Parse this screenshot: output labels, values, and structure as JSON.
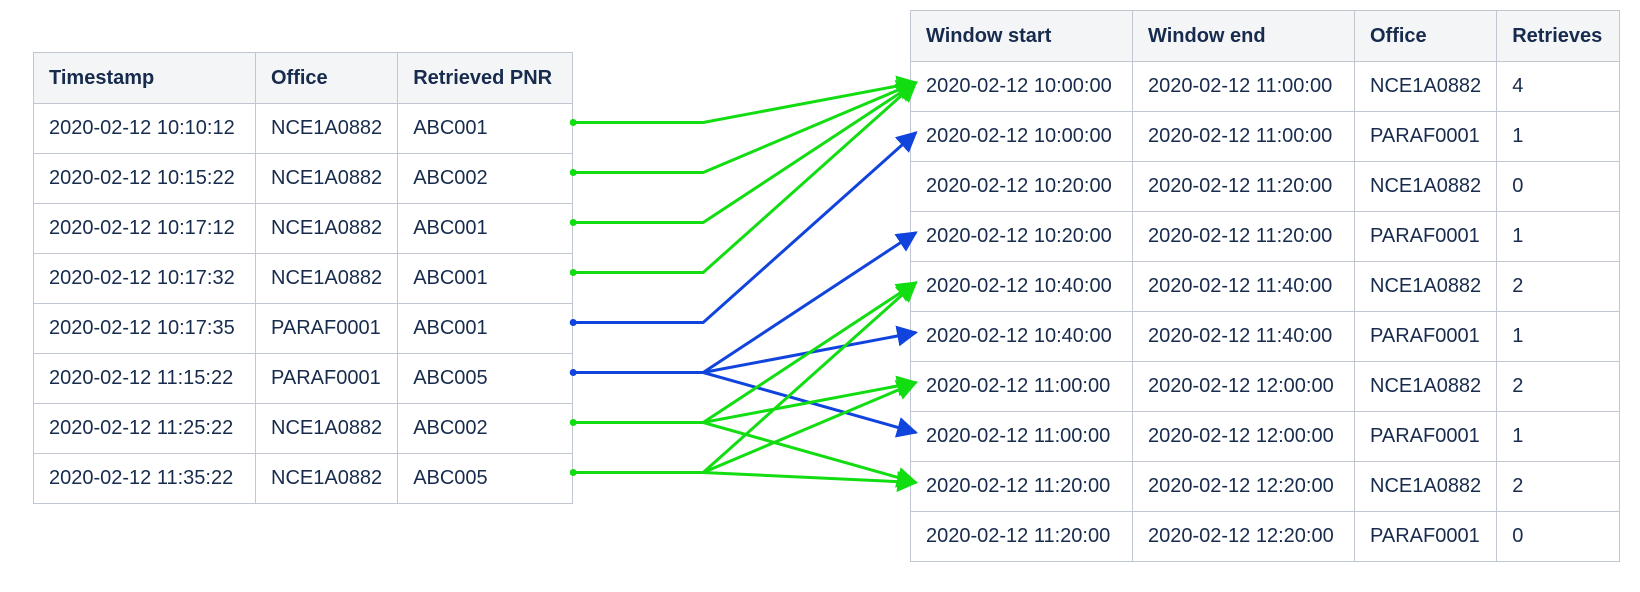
{
  "colors": {
    "group_office_a": "#11dd11",
    "group_office_b": "#1144dd"
  },
  "left_table": {
    "headers": [
      "Timestamp",
      "Office",
      "Retrieved PNR"
    ],
    "rows": [
      [
        "2020-02-12 10:10:12",
        "NCE1A0882",
        "ABC001"
      ],
      [
        "2020-02-12 10:15:22",
        "NCE1A0882",
        "ABC002"
      ],
      [
        "2020-02-12 10:17:12",
        "NCE1A0882",
        "ABC001"
      ],
      [
        "2020-02-12 10:17:32",
        "NCE1A0882",
        "ABC001"
      ],
      [
        "2020-02-12 10:17:35",
        "PARAF0001",
        "ABC001"
      ],
      [
        "2020-02-12 11:15:22",
        "PARAF0001",
        "ABC005"
      ],
      [
        "2020-02-12 11:25:22",
        "NCE1A0882",
        "ABC002"
      ],
      [
        "2020-02-12 11:35:22",
        "NCE1A0882",
        "ABC005"
      ]
    ]
  },
  "right_table": {
    "headers": [
      "Window start",
      "Window end",
      "Office",
      "Retrieves"
    ],
    "rows": [
      [
        "2020-02-12 10:00:00",
        "2020-02-12 11:00:00",
        "NCE1A0882",
        "4"
      ],
      [
        "2020-02-12 10:00:00",
        "2020-02-12 11:00:00",
        "PARAF0001",
        "1"
      ],
      [
        "2020-02-12 10:20:00",
        "2020-02-12 11:20:00",
        "NCE1A0882",
        "0"
      ],
      [
        "2020-02-12 10:20:00",
        "2020-02-12 11:20:00",
        "PARAF0001",
        "1"
      ],
      [
        "2020-02-12 10:40:00",
        "2020-02-12 11:40:00",
        "NCE1A0882",
        "2"
      ],
      [
        "2020-02-12 10:40:00",
        "2020-02-12 11:40:00",
        "PARAF0001",
        "1"
      ],
      [
        "2020-02-12 11:00:00",
        "2020-02-12 12:00:00",
        "NCE1A0882",
        "2"
      ],
      [
        "2020-02-12 11:00:00",
        "2020-02-12 12:00:00",
        "PARAF0001",
        "1"
      ],
      [
        "2020-02-12 11:20:00",
        "2020-02-12 12:20:00",
        "NCE1A0882",
        "2"
      ],
      [
        "2020-02-12 11:20:00",
        "2020-02-12 12:20:00",
        "PARAF0001",
        "0"
      ]
    ]
  },
  "connections": [
    {
      "from": 0,
      "to": [
        0
      ],
      "color": "group_office_a"
    },
    {
      "from": 1,
      "to": [
        0
      ],
      "color": "group_office_a"
    },
    {
      "from": 2,
      "to": [
        0
      ],
      "color": "group_office_a"
    },
    {
      "from": 3,
      "to": [
        0
      ],
      "color": "group_office_a"
    },
    {
      "from": 4,
      "to": [
        1
      ],
      "color": "group_office_b"
    },
    {
      "from": 5,
      "to": [
        3,
        5,
        7
      ],
      "color": "group_office_b"
    },
    {
      "from": 6,
      "to": [
        4,
        6,
        8
      ],
      "color": "group_office_a"
    },
    {
      "from": 7,
      "to": [
        4,
        6,
        8
      ],
      "color": "group_office_a"
    }
  ]
}
